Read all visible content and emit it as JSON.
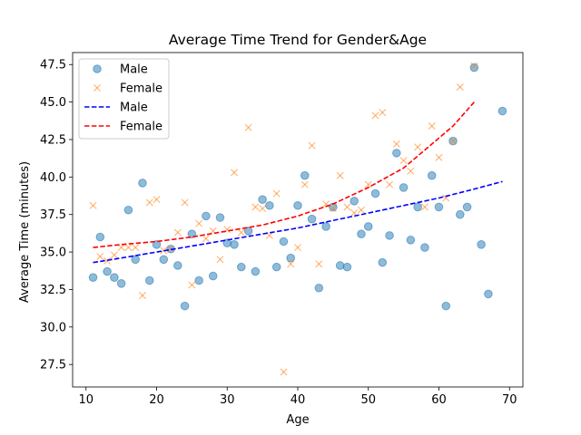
{
  "chart_data": {
    "type": "scatter",
    "title": "Average Time Trend for Gender&Age",
    "xlabel": "Age",
    "ylabel": "Average Time (minutes)",
    "xlim": [
      8.1,
      71.9
    ],
    "ylim": [
      26.0,
      48.3
    ],
    "xticks": [
      10,
      20,
      30,
      40,
      50,
      60,
      70
    ],
    "yticks": [
      27.5,
      30.0,
      32.5,
      35.0,
      37.5,
      40.0,
      42.5,
      45.0,
      47.5
    ],
    "ytick_labels": [
      "27.5",
      "30.0",
      "32.5",
      "35.0",
      "37.5",
      "40.0",
      "42.5",
      "45.0",
      "47.5"
    ],
    "grid": false,
    "legend_position": "top-left",
    "colors": {
      "male_points": "#1f77b4",
      "female_points": "#ff7f0e",
      "male_trend": "#0000ff",
      "female_trend": "#ff0000"
    },
    "legend": [
      "Male",
      "Female",
      "Male",
      "Female"
    ],
    "series": [
      {
        "name": "Male",
        "kind": "scatter",
        "marker": "circle",
        "points": [
          [
            11,
            33.3
          ],
          [
            12,
            36.0
          ],
          [
            13,
            33.7
          ],
          [
            14,
            33.3
          ],
          [
            15,
            32.9
          ],
          [
            16,
            37.8
          ],
          [
            17,
            34.5
          ],
          [
            18,
            39.6
          ],
          [
            19,
            33.1
          ],
          [
            20,
            35.5
          ],
          [
            21,
            34.5
          ],
          [
            22,
            35.2
          ],
          [
            23,
            34.1
          ],
          [
            24,
            31.4
          ],
          [
            25,
            36.2
          ],
          [
            26,
            33.1
          ],
          [
            27,
            37.4
          ],
          [
            28,
            33.4
          ],
          [
            29,
            37.3
          ],
          [
            30,
            35.6
          ],
          [
            31,
            35.5
          ],
          [
            32,
            34.0
          ],
          [
            33,
            36.4
          ],
          [
            34,
            33.7
          ],
          [
            35,
            38.5
          ],
          [
            36,
            38.1
          ],
          [
            37,
            34.0
          ],
          [
            38,
            35.7
          ],
          [
            39,
            34.6
          ],
          [
            40,
            38.1
          ],
          [
            41,
            40.1
          ],
          [
            42,
            37.2
          ],
          [
            43,
            32.6
          ],
          [
            44,
            36.7
          ],
          [
            45,
            38.0
          ],
          [
            46,
            34.1
          ],
          [
            47,
            34.0
          ],
          [
            48,
            38.4
          ],
          [
            49,
            36.2
          ],
          [
            50,
            36.7
          ],
          [
            51,
            38.9
          ],
          [
            52,
            34.3
          ],
          [
            53,
            36.1
          ],
          [
            54,
            41.6
          ],
          [
            55,
            39.3
          ],
          [
            56,
            35.8
          ],
          [
            57,
            38.0
          ],
          [
            58,
            35.3
          ],
          [
            59,
            40.1
          ],
          [
            60,
            38.0
          ],
          [
            61,
            31.4
          ],
          [
            62,
            42.4
          ],
          [
            63,
            37.5
          ],
          [
            64,
            38.0
          ],
          [
            65,
            47.3
          ],
          [
            66,
            35.5
          ],
          [
            67,
            32.2
          ],
          [
            69,
            44.4
          ]
        ]
      },
      {
        "name": "Female",
        "kind": "scatter",
        "marker": "x",
        "points": [
          [
            11,
            38.1
          ],
          [
            12,
            34.7
          ],
          [
            13,
            34.4
          ],
          [
            14,
            34.8
          ],
          [
            15,
            35.3
          ],
          [
            16,
            35.3
          ],
          [
            17,
            35.3
          ],
          [
            18,
            32.1
          ],
          [
            19,
            38.3
          ],
          [
            20,
            38.5
          ],
          [
            21,
            35.1
          ],
          [
            22,
            35.2
          ],
          [
            23,
            36.3
          ],
          [
            24,
            38.3
          ],
          [
            25,
            32.8
          ],
          [
            26,
            36.9
          ],
          [
            27,
            35.9
          ],
          [
            28,
            36.4
          ],
          [
            29,
            34.5
          ],
          [
            30,
            36.5
          ],
          [
            31,
            40.3
          ],
          [
            32,
            36.3
          ],
          [
            33,
            43.3
          ],
          [
            34,
            38.0
          ],
          [
            35,
            37.9
          ],
          [
            36,
            36.1
          ],
          [
            37,
            38.9
          ],
          [
            38,
            27.0
          ],
          [
            39,
            34.2
          ],
          [
            40,
            35.3
          ],
          [
            41,
            39.5
          ],
          [
            42,
            42.1
          ],
          [
            43,
            34.2
          ],
          [
            44,
            38.2
          ],
          [
            45,
            37.9
          ],
          [
            46,
            40.1
          ],
          [
            47,
            38.0
          ],
          [
            48,
            37.6
          ],
          [
            49,
            37.8
          ],
          [
            50,
            39.5
          ],
          [
            51,
            44.1
          ],
          [
            52,
            44.3
          ],
          [
            53,
            39.5
          ],
          [
            54,
            42.2
          ],
          [
            55,
            41.1
          ],
          [
            56,
            40.4
          ],
          [
            57,
            42.0
          ],
          [
            58,
            38.0
          ],
          [
            59,
            43.4
          ],
          [
            60,
            41.3
          ],
          [
            61,
            38.6
          ],
          [
            62,
            42.4
          ],
          [
            63,
            46.0
          ],
          [
            65,
            47.4
          ]
        ]
      },
      {
        "name": "Male",
        "kind": "trend",
        "style": "dashed",
        "x": [
          11,
          15,
          20,
          25,
          30,
          35,
          40,
          45,
          50,
          55,
          60,
          65,
          69
        ],
        "values": [
          34.3,
          34.6,
          35.0,
          35.4,
          35.8,
          36.2,
          36.6,
          37.1,
          37.6,
          38.1,
          38.6,
          39.2,
          39.7
        ]
      },
      {
        "name": "Female",
        "kind": "trend",
        "style": "dashed",
        "x": [
          11,
          15,
          20,
          25,
          30,
          35,
          40,
          45,
          50,
          55,
          60,
          62,
          65
        ],
        "values": [
          35.3,
          35.5,
          35.7,
          36.0,
          36.4,
          36.8,
          37.4,
          38.2,
          39.3,
          40.6,
          42.6,
          43.4,
          45.0
        ]
      }
    ]
  }
}
